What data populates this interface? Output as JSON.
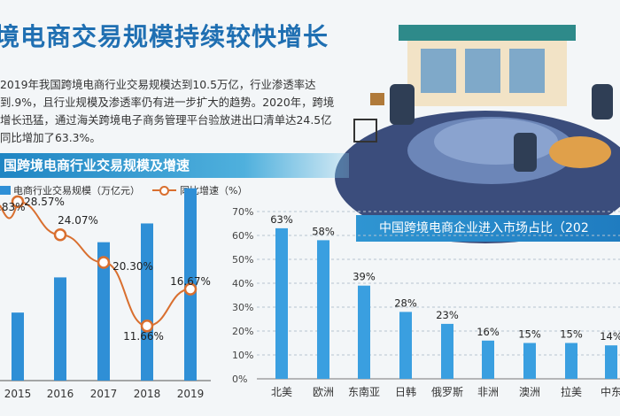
{
  "headline": "境电商交易规模持续较快增长",
  "paragraph": "2019年我国跨境电商行业交易规模达到10.5万亿，行业渗透率达到.9%，且行业规模及渗透率仍有进一步扩大的趋势。2020年，跨境增长迅猛，通过海关跨境电子商务管理平台验放进出口清单达24.5亿同比增加了63.3%。",
  "colors": {
    "bar": "#2f8fd6",
    "line": "#d96f2f",
    "bar2": "#3a9fe0",
    "accent": "#1f6fb2"
  },
  "chart_data": [
    {
      "type": "bar",
      "title": "国跨境电商行业交易规模及增速",
      "legend": [
        "电商行业交易规模（万亿元）",
        "同比增速（%）"
      ],
      "categories": [
        "2015",
        "2016",
        "2017",
        "2018",
        "2019"
      ],
      "series": [
        {
          "name": "电商行业交易规模（万亿元）",
          "values": [
            5.2,
            6.7,
            8.2,
            9.0,
            10.5
          ]
        },
        {
          "name": "同比增速（%）",
          "type": "line",
          "values": [
            28.57,
            24.07,
            20.3,
            11.66,
            16.67
          ]
        }
      ],
      "partial_label": ".83%",
      "line_labels": [
        "28.57%",
        "24.07%",
        "20.30%",
        "11.66%",
        "16.67%"
      ]
    },
    {
      "type": "bar",
      "title": "中国跨境电商企业进入市场占比（202",
      "categories": [
        "北美",
        "欧洲",
        "东南亚",
        "日韩",
        "俄罗斯",
        "非洲",
        "澳洲",
        "拉美",
        "中东"
      ],
      "values": [
        63,
        58,
        39,
        28,
        23,
        16,
        15,
        15,
        14
      ],
      "value_labels": [
        "63%",
        "58%",
        "39%",
        "28%",
        "23%",
        "16%",
        "15%",
        "15%",
        "14%"
      ],
      "y_ticks": [
        "0%",
        "10%",
        "20%",
        "30%",
        "40%",
        "50%",
        "60%",
        "70%"
      ],
      "ylim": [
        0,
        70
      ]
    }
  ]
}
